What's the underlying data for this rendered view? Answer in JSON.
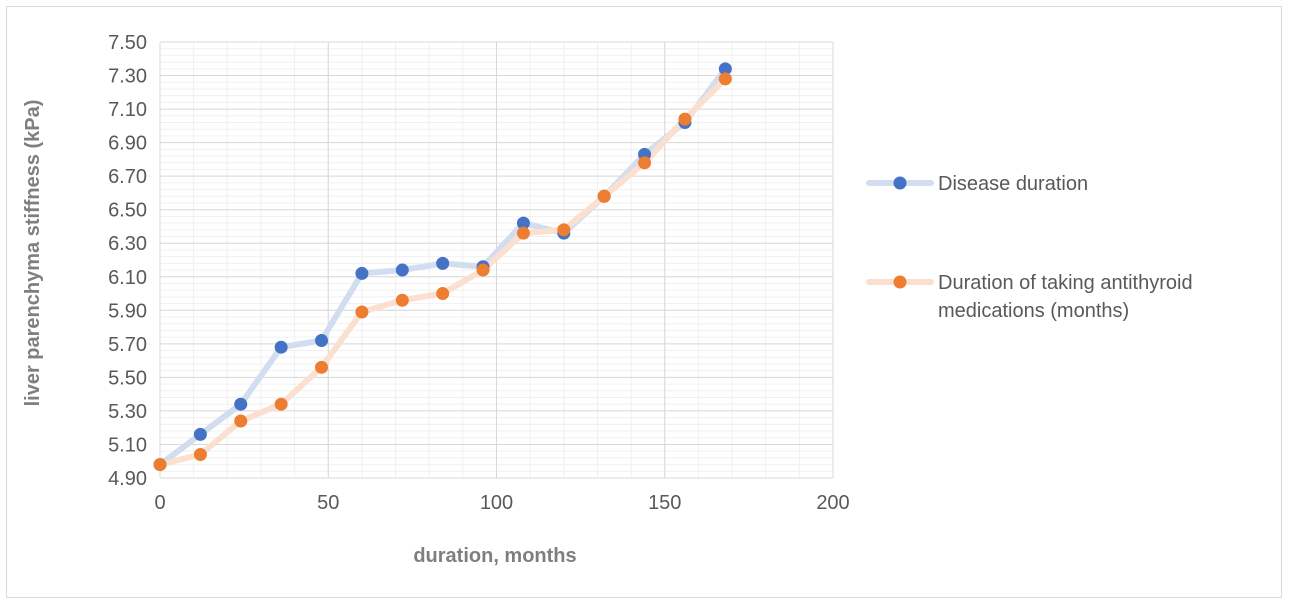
{
  "chart_data": {
    "type": "scatter",
    "title": "",
    "xlabel": "duration, months",
    "ylabel": "liver parenchyma stiffness (kPa)",
    "xlim": [
      0,
      200
    ],
    "ylim": [
      4.9,
      7.5
    ],
    "x_ticks": [
      0,
      50,
      100,
      150,
      200
    ],
    "x_tick_labels": [
      "0",
      "50",
      "100",
      "150",
      "200"
    ],
    "y_ticks": [
      4.9,
      5.1,
      5.3,
      5.5,
      5.7,
      5.9,
      6.1,
      6.3,
      6.5,
      6.7,
      6.9,
      7.1,
      7.3,
      7.5
    ],
    "y_tick_labels": [
      "4.90",
      "5.10",
      "5.30",
      "5.50",
      "5.70",
      "5.90",
      "6.10",
      "6.30",
      "6.50",
      "6.70",
      "6.90",
      "7.10",
      "7.30",
      "7.50"
    ],
    "grid": true,
    "legend_position": "right",
    "series": [
      {
        "name": "Disease duration",
        "marker_color": "#4472c4",
        "line_color": "#d3ddf0",
        "x": [
          0,
          12,
          24,
          36,
          48,
          60,
          72,
          84,
          96,
          108,
          120,
          132,
          144,
          156,
          168
        ],
        "y": [
          4.98,
          5.16,
          5.34,
          5.68,
          5.72,
          6.12,
          6.14,
          6.18,
          6.16,
          6.42,
          6.36,
          6.58,
          6.83,
          7.02,
          7.34
        ]
      },
      {
        "name": "Duration of taking antithyroid medications (months)",
        "marker_color": "#ed7d31",
        "line_color": "#fbe0cf",
        "x": [
          0,
          12,
          24,
          36,
          48,
          60,
          72,
          84,
          96,
          108,
          120,
          132,
          144,
          156,
          168
        ],
        "y": [
          4.98,
          5.04,
          5.24,
          5.34,
          5.56,
          5.89,
          5.96,
          6.0,
          6.14,
          6.36,
          6.38,
          6.58,
          6.78,
          7.04,
          7.28
        ]
      }
    ],
    "legend_labels": [
      [
        "Disease duration"
      ],
      [
        "Duration of taking antithyroid",
        "medications (months)"
      ]
    ]
  }
}
